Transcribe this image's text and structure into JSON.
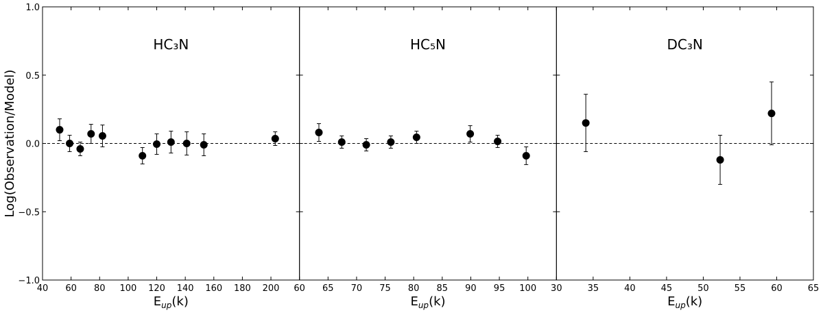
{
  "chart_data": [
    {
      "type": "scatter",
      "title": "HC₃N",
      "color": "#000000",
      "x": [
        52,
        59,
        66.4,
        74,
        82,
        110,
        120,
        130,
        141,
        153,
        203
      ],
      "values": [
        0.1,
        0.0,
        -0.04,
        0.07,
        0.055,
        -0.09,
        -0.005,
        0.01,
        0.0,
        -0.01,
        0.035
      ],
      "errors": [
        0.08,
        0.06,
        0.05,
        0.07,
        0.08,
        0.06,
        0.075,
        0.08,
        0.085,
        0.08,
        0.05
      ],
      "xlim": [
        40,
        220
      ],
      "xticks": [
        40,
        60,
        80,
        100,
        120,
        140,
        160,
        180,
        200
      ],
      "ylim": [
        -1,
        1
      ],
      "yticks": [
        {
          "value": -1,
          "label": "−1.0"
        },
        {
          "value": -0.5,
          "label": "−0.5"
        },
        {
          "value": 0,
          "label": "0.0"
        },
        {
          "value": 0.5,
          "label": "0.5"
        },
        {
          "value": 1,
          "label": "1.0"
        }
      ],
      "ylabel": "Log(Observation/Model)",
      "xlabel": {
        "base": "E",
        "sub": "up",
        "rest": "(k)"
      },
      "hline": 0
    },
    {
      "type": "scatter",
      "title": "HC₅N",
      "color": "#000000",
      "x": [
        63.4,
        67.4,
        71.7,
        76.0,
        80.5,
        89.9,
        94.7,
        99.7
      ],
      "values": [
        0.08,
        0.01,
        -0.01,
        0.01,
        0.045,
        0.07,
        0.015,
        -0.09
      ],
      "errors": [
        0.065,
        0.045,
        0.045,
        0.045,
        0.045,
        0.06,
        0.045,
        0.065
      ],
      "xlim": [
        60,
        105
      ],
      "xticks": [
        60,
        65,
        70,
        75,
        80,
        85,
        90,
        95,
        100
      ],
      "ylim": [
        -1,
        1
      ],
      "xlabel": {
        "base": "E",
        "sub": "up",
        "rest": "(k)"
      },
      "hline": 0
    },
    {
      "type": "scatter",
      "title": "DC₃N",
      "color": "#000000",
      "x": [
        34.0,
        52.3,
        59.3
      ],
      "values": [
        0.15,
        -0.12,
        0.22
      ],
      "errors": [
        0.21,
        0.18,
        0.23
      ],
      "xlim": [
        30,
        65
      ],
      "xticks": [
        30,
        35,
        40,
        45,
        50,
        55,
        60,
        65
      ],
      "ylim": [
        -1,
        1
      ],
      "xlabel": {
        "base": "E",
        "sub": "up",
        "rest": "(k)"
      },
      "hline": 0
    }
  ]
}
